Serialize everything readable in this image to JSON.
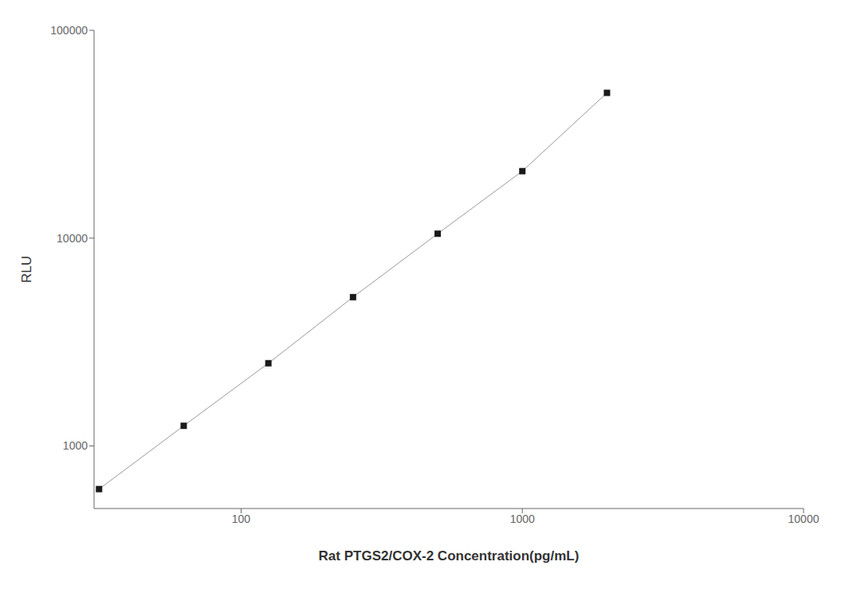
{
  "chart_data": {
    "type": "line",
    "xlabel": "Rat PTGS2/COX-2 Concentration(pg/mL)",
    "ylabel": "RLU",
    "x": [
      31.25,
      62.5,
      125,
      250,
      500,
      1000,
      2000
    ],
    "series": [
      {
        "type": "line",
        "color": "#999999",
        "values": [
          620,
          1250,
          2500,
          5200,
          10500,
          21000,
          50000
        ]
      },
      {
        "type": "scatter",
        "color": "#1a1a1a",
        "marker": "square",
        "values": [
          620,
          1250,
          2500,
          5200,
          10500,
          21000,
          50000
        ]
      }
    ],
    "xlim": [
      30,
      10000
    ],
    "ylim": [
      500,
      100000
    ],
    "xticks": [
      100,
      1000,
      10000
    ],
    "yticks": [
      1000,
      10000,
      100000
    ],
    "log": true,
    "grid": false
  }
}
